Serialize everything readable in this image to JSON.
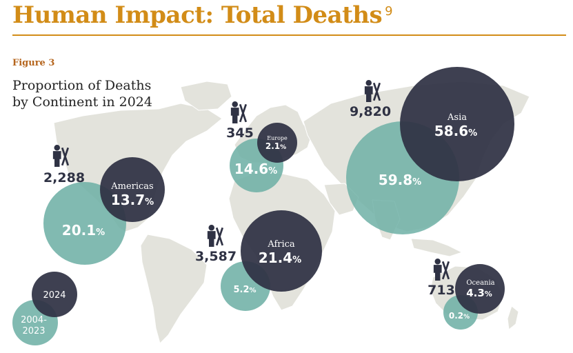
{
  "header": {
    "title": "Human Impact: Total Deaths",
    "footnote": "9",
    "figure_label": "Figure 3",
    "subtitle_line1": "Proportion of Deaths",
    "subtitle_line2": "by Continent in 2024"
  },
  "colors": {
    "dark_bubble": "#2f3244",
    "teal_bubble": "#6fb0a6",
    "map_land": "#e3e3dc",
    "title_gold": "#d28c17"
  },
  "chart_data": {
    "type": "bubble-map",
    "title": "Proportion of Deaths by Continent in 2024",
    "series": [
      {
        "name": "2024",
        "color": "dark"
      },
      {
        "name": "2004-2023",
        "color": "teal"
      }
    ],
    "continents": [
      {
        "name": "Americas",
        "deaths_2024": "2,288",
        "pct_2024": 13.7,
        "pct_2004_2023": 20.1
      },
      {
        "name": "Europe",
        "deaths_2024": "345",
        "pct_2024": 2.1,
        "pct_2004_2023": 14.6
      },
      {
        "name": "Asia",
        "deaths_2024": "9,820",
        "pct_2024": 58.6,
        "pct_2004_2023": 59.8
      },
      {
        "name": "Africa",
        "deaths_2024": "3,587",
        "pct_2024": 21.4,
        "pct_2004_2023": 5.2
      },
      {
        "name": "Oceania",
        "deaths_2024": "713",
        "pct_2024": 4.3,
        "pct_2004_2023": 0.2
      }
    ],
    "legend": {
      "dark_label": "2024",
      "teal_label_line1": "2004-",
      "teal_label_line2": "2023"
    }
  }
}
